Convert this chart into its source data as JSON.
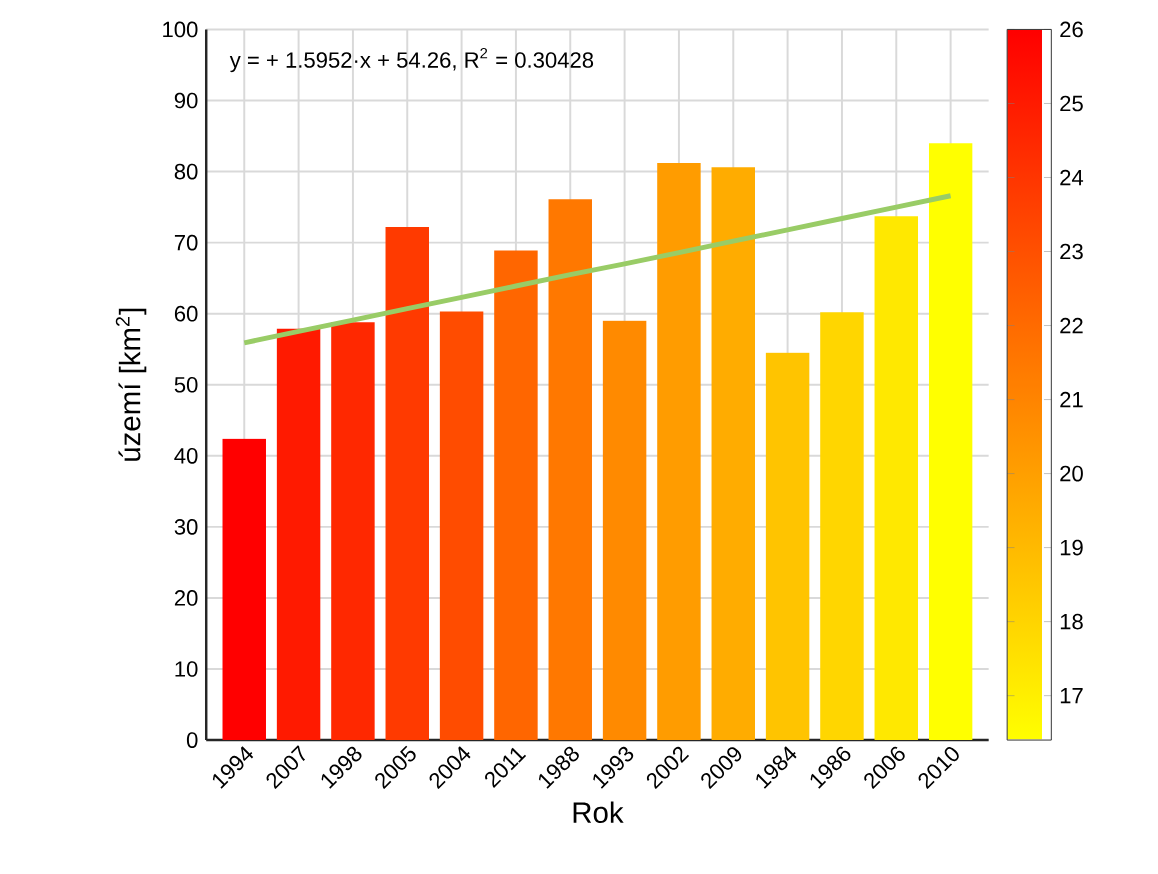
{
  "chart_data": {
    "type": "bar",
    "xlabel": "Rok",
    "ylabel": "území [km$^{2}$]",
    "annotations": [
      "y = + 1.5952·x + 54.26, R$^{2}$ = 0.30428"
    ],
    "categories": [
      "1994",
      "2007",
      "1998",
      "2005",
      "2004",
      "2011",
      "1988",
      "1993",
      "2002",
      "2009",
      "1984",
      "1986",
      "2006",
      "2010"
    ],
    "series": [
      {
        "values": [
          42.4,
          57.9,
          58.8,
          72.2,
          60.3,
          68.9,
          76.1,
          59.0,
          81.2,
          80.6,
          54.5,
          60.2,
          73.7,
          84.0
        ],
        "colors": [
          "#ff0000",
          "#ff1a00",
          "#ff2800",
          "#ff3a00",
          "#ff4c00",
          "#ff6600",
          "#ff7800",
          "#ff8a00",
          "#ff9c00",
          "#ffac00",
          "#ffc400",
          "#ffd600",
          "#ffe800",
          "#ffff00"
        ]
      },
      {
        "type": "line",
        "values": [
          55.9,
          57.5,
          59.1,
          60.7,
          62.3,
          63.9,
          65.5,
          67.0,
          68.6,
          70.2,
          71.8,
          73.4,
          75.0,
          76.6
        ],
        "color": "#99cc66"
      }
    ],
    "ylim": [
      0,
      100
    ],
    "yticks": [
      0,
      10,
      20,
      30,
      40,
      50,
      60,
      70,
      80,
      90,
      100
    ],
    "clim": [
      16.4,
      26
    ],
    "cticks": [
      17,
      18,
      19,
      20,
      21,
      22,
      23,
      24,
      25,
      26
    ],
    "grid": true
  }
}
